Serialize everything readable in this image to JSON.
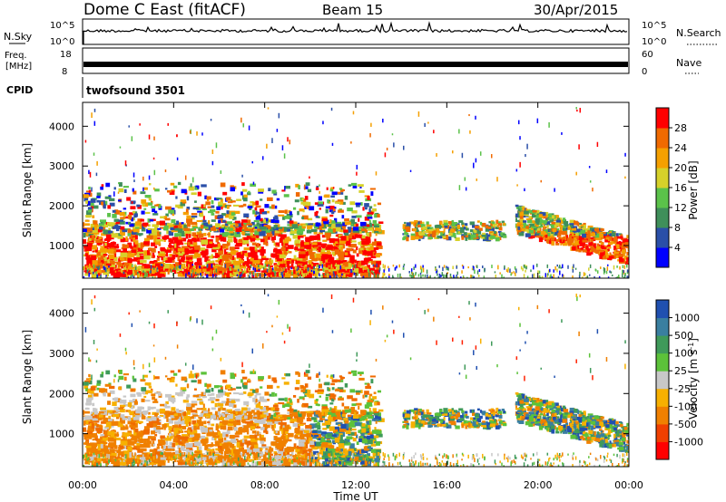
{
  "header": {
    "radar": "Dome C East (fitACF)",
    "beam": "Beam 15",
    "date": "30/Apr/2015"
  },
  "params": {
    "nsky_label": "N.Sky",
    "nsearch_label": "N.Search",
    "nsky_ticks": [
      "10^5",
      "10^0"
    ],
    "nsearch_ticks": [
      "10^5",
      "10^0"
    ],
    "freq_label": "Freq.",
    "freq_unit": "[MHz]",
    "freq_ticks": [
      "18",
      "8"
    ],
    "nave_label": "Nave",
    "nave_ticks": [
      "60",
      "0"
    ],
    "cpid_label": "CPID",
    "cpid_value": "twofsound 3501"
  },
  "time_axis": {
    "label": "Time UT",
    "ticks": [
      "00:00",
      "04:00",
      "08:00",
      "12:00",
      "16:00",
      "20:00",
      "00:00"
    ]
  },
  "range_axis": {
    "label": "Slant Range [km]",
    "ticks": [
      "1000",
      "2000",
      "3000",
      "4000"
    ]
  },
  "chart_data": [
    {
      "type": "heatmap",
      "panel": "power",
      "xlabel": "Time UT",
      "ylabel": "Slant Range [km]",
      "xlim": [
        0,
        24
      ],
      "ylim": [
        180,
        4600
      ],
      "colorbar": {
        "label": "Power [dB]",
        "ticks": [
          "4",
          "8",
          "12",
          "16",
          "20",
          "24",
          "28"
        ],
        "range": [
          0,
          32
        ],
        "colors": [
          "#0000ff",
          "#2a4fa8",
          "#3f8f5a",
          "#5bc24a",
          "#d6d12a",
          "#f5a000",
          "#f06a00",
          "#ff0000"
        ]
      },
      "echo_regions": [
        {
          "t_start": 0.0,
          "t_end": 13.0,
          "range_min": 300,
          "range_max": 1500,
          "level": "28+"
        },
        {
          "t_start": 0.0,
          "t_end": 13.0,
          "range_min": 1500,
          "range_max": 2700,
          "level": "4-24"
        },
        {
          "t_start": 14.0,
          "t_end": 18.5,
          "range_min": 1200,
          "range_max": 1700,
          "level": "4-20"
        },
        {
          "t_start": 19.0,
          "t_end": 24.0,
          "range_min": 600,
          "range_max": 1900,
          "level": "8-28+"
        }
      ]
    },
    {
      "type": "heatmap",
      "panel": "velocity",
      "xlabel": "Time UT",
      "ylabel": "Slant Range [km]",
      "xlim": [
        0,
        24
      ],
      "ylim": [
        180,
        4600
      ],
      "colorbar": {
        "label": "Velocity [m s-1]",
        "ticks": [
          "1000",
          "500",
          "100",
          "25",
          "-25",
          "-100",
          "-500",
          "-1000"
        ],
        "colors": [
          "#2050b0",
          "#3a7fa0",
          "#3f9a5a",
          "#5cc23a",
          "#c8c8c8",
          "#f7b000",
          "#f08000",
          "#f04000",
          "#ff0000"
        ]
      },
      "echo_regions": [
        {
          "t_start": 0.0,
          "t_end": 10.0,
          "range_min": 500,
          "range_max": 1500,
          "velocity": "-25 to -500"
        },
        {
          "t_start": 0.0,
          "t_end": 8.0,
          "range_min": 1500,
          "range_max": 2000,
          "velocity": "-25 to 25"
        },
        {
          "t_start": 10.0,
          "t_end": 13.0,
          "range_min": 800,
          "range_max": 1900,
          "velocity": "25 to 500"
        },
        {
          "t_start": 14.0,
          "t_end": 18.5,
          "range_min": 1200,
          "range_max": 1600,
          "velocity": "25 to 500"
        },
        {
          "t_start": 19.0,
          "t_end": 24.0,
          "range_min": 800,
          "range_max": 1800,
          "velocity": "-100 to 500"
        }
      ]
    }
  ]
}
